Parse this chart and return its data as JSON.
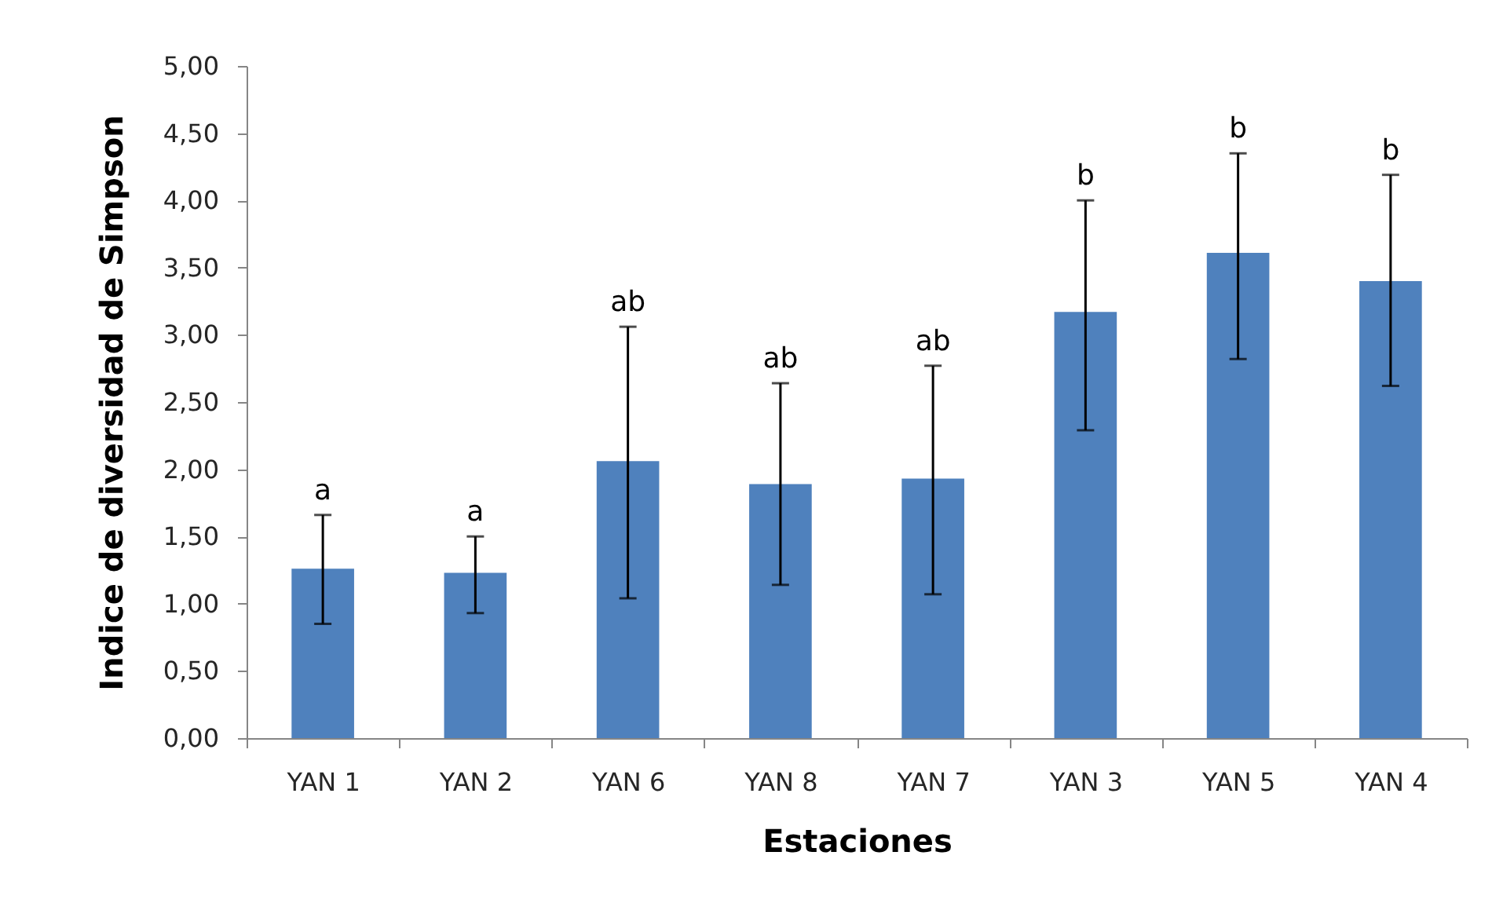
{
  "chart_data": {
    "type": "bar",
    "xlabel": "Estaciones",
    "ylabel": "Indice de diversidad de Simpson",
    "categories": [
      "YAN 1",
      "YAN 2",
      "YAN 6",
      "YAN 8",
      "YAN 7",
      "YAN 3",
      "YAN 5",
      "YAN 4"
    ],
    "series": [
      {
        "color": "#4f81bd",
        "values": [
          1.26,
          1.23,
          2.06,
          1.89,
          1.93,
          3.17,
          3.61,
          3.4
        ],
        "errors": [
          [
            0.85,
            1.66
          ],
          [
            0.93,
            1.5
          ],
          [
            1.04,
            3.06
          ],
          [
            1.14,
            2.64
          ],
          [
            1.07,
            2.77
          ],
          [
            2.29,
            4.0
          ],
          [
            2.82,
            4.35
          ],
          [
            2.62,
            4.19
          ]
        ]
      }
    ],
    "ylim": [
      0,
      5
    ],
    "yticks": [
      {
        "value": 0,
        "label": "0,00"
      },
      {
        "value": 0.5,
        "label": "0,50"
      },
      {
        "value": 1,
        "label": "1,00"
      },
      {
        "value": 1.5,
        "label": "1,50"
      },
      {
        "value": 2,
        "label": "2,00"
      },
      {
        "value": 2.5,
        "label": "2,50"
      },
      {
        "value": 3,
        "label": "3,00"
      },
      {
        "value": 3.5,
        "label": "3,50"
      },
      {
        "value": 4,
        "label": "4,00"
      },
      {
        "value": 4.5,
        "label": "4,50"
      },
      {
        "value": 5,
        "label": "5,00"
      }
    ],
    "annotations": [
      {
        "text": "a",
        "x": "YAN 1",
        "y": 1.66
      },
      {
        "text": "a",
        "x": "YAN 2",
        "y": 1.5
      },
      {
        "text": "ab",
        "x": "YAN 6",
        "y": 3.06
      },
      {
        "text": "ab",
        "x": "YAN 8",
        "y": 2.64
      },
      {
        "text": "ab",
        "x": "YAN 7",
        "y": 2.77
      },
      {
        "text": "b",
        "x": "YAN 3",
        "y": 4.0
      },
      {
        "text": "b",
        "x": "YAN 5",
        "y": 4.35
      },
      {
        "text": "b",
        "x": "YAN 4",
        "y": 4.19
      }
    ]
  }
}
